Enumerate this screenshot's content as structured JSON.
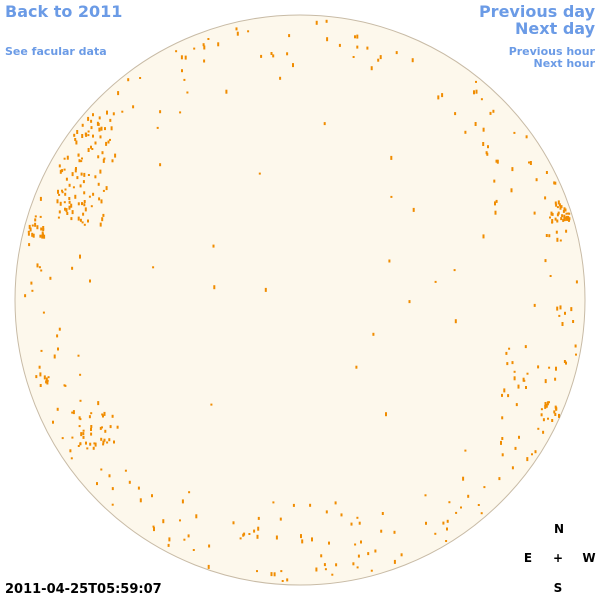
{
  "header": {
    "back": "Back to 2011",
    "facular": "See facular data",
    "previous_day": "Previous day",
    "next_day": "Next day",
    "previous_hour": "Previous hour",
    "next_hour": "Next hour"
  },
  "timestamp": "2011-04-25T05:59:07",
  "compass": {
    "north": "N",
    "east": "E",
    "center": "+",
    "west": "W",
    "south": "S"
  }
}
